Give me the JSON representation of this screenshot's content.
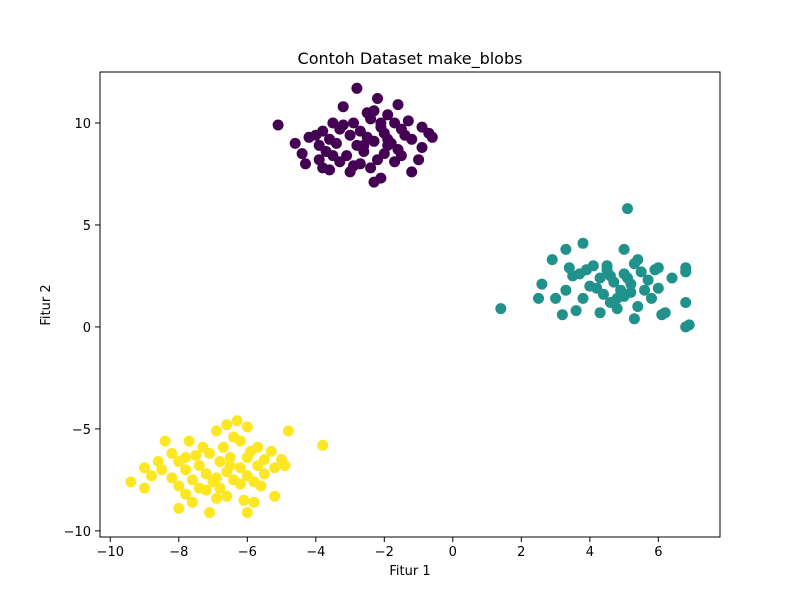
{
  "chart_data": {
    "type": "scatter",
    "title": "Contoh Dataset make_blobs",
    "xlabel": "Fitur 1",
    "ylabel": "Fitur 2",
    "xlim": [
      -10.3,
      7.8
    ],
    "ylim": [
      -10.3,
      12.5
    ],
    "xticks": [
      -10,
      -8,
      -6,
      -4,
      -2,
      0,
      2,
      4,
      6
    ],
    "yticks": [
      -10,
      -5,
      0,
      5,
      10
    ],
    "xtick_labels": [
      "−10",
      "−8",
      "−6",
      "−4",
      "−2",
      "0",
      "2",
      "4",
      "6"
    ],
    "ytick_labels": [
      "−10",
      "−5",
      "0",
      "5",
      "10"
    ],
    "grid": false,
    "series": [
      {
        "color": "#440154",
        "points": [
          [
            -5.1,
            9.9
          ],
          [
            -2.8,
            11.7
          ],
          [
            -2.2,
            11.2
          ],
          [
            -1.6,
            10.9
          ],
          [
            -3.2,
            10.8
          ],
          [
            -2.5,
            10.5
          ],
          [
            -1.9,
            10.4
          ],
          [
            -1.3,
            10.1
          ],
          [
            -3.5,
            10.0
          ],
          [
            -2.9,
            10.0
          ],
          [
            -2.4,
            10.2
          ],
          [
            -1.7,
            10.0
          ],
          [
            -0.9,
            9.8
          ],
          [
            -3.8,
            9.6
          ],
          [
            -3.3,
            9.7
          ],
          [
            -2.7,
            9.6
          ],
          [
            -2.1,
            9.8
          ],
          [
            -1.5,
            9.7
          ],
          [
            -0.6,
            9.3
          ],
          [
            -4.2,
            9.3
          ],
          [
            -3.6,
            9.2
          ],
          [
            -3.0,
            9.4
          ],
          [
            -2.5,
            9.3
          ],
          [
            -2.0,
            9.5
          ],
          [
            -1.4,
            9.4
          ],
          [
            -4.6,
            9.0
          ],
          [
            -3.9,
            8.9
          ],
          [
            -3.4,
            9.0
          ],
          [
            -2.8,
            8.9
          ],
          [
            -2.3,
            9.1
          ],
          [
            -1.8,
            9.0
          ],
          [
            -1.2,
            9.2
          ],
          [
            -4.4,
            8.5
          ],
          [
            -3.7,
            8.6
          ],
          [
            -3.1,
            8.4
          ],
          [
            -2.6,
            8.6
          ],
          [
            -2.0,
            8.5
          ],
          [
            -1.5,
            8.4
          ],
          [
            -1.0,
            8.2
          ],
          [
            -0.9,
            8.8
          ],
          [
            -3.9,
            8.2
          ],
          [
            -3.3,
            8.1
          ],
          [
            -2.7,
            8.0
          ],
          [
            -2.2,
            8.2
          ],
          [
            -1.7,
            8.1
          ],
          [
            -3.8,
            7.8
          ],
          [
            -3.0,
            7.6
          ],
          [
            -2.4,
            7.8
          ],
          [
            -2.1,
            7.3
          ],
          [
            -2.3,
            7.1
          ],
          [
            -1.2,
            7.6
          ],
          [
            -3.6,
            7.7
          ],
          [
            -2.6,
            8.9
          ],
          [
            -1.9,
            9.2
          ],
          [
            -3.2,
            9.9
          ],
          [
            -2.3,
            10.6
          ],
          [
            -4.0,
            9.4
          ],
          [
            -1.6,
            8.7
          ],
          [
            -2.9,
            7.9
          ],
          [
            -3.5,
            8.4
          ],
          [
            -2.1,
            10.0
          ],
          [
            -0.7,
            9.5
          ],
          [
            -4.3,
            8.0
          ],
          [
            -1.9,
            8.9
          ]
        ]
      },
      {
        "color": "#21918c",
        "points": [
          [
            5.1,
            5.8
          ],
          [
            1.4,
            0.9
          ],
          [
            3.3,
            3.8
          ],
          [
            3.8,
            4.1
          ],
          [
            2.9,
            3.3
          ],
          [
            3.4,
            2.9
          ],
          [
            2.6,
            2.1
          ],
          [
            2.5,
            1.4
          ],
          [
            3.0,
            1.4
          ],
          [
            3.2,
            0.6
          ],
          [
            3.6,
            0.8
          ],
          [
            3.8,
            1.4
          ],
          [
            3.7,
            2.6
          ],
          [
            4.1,
            3.0
          ],
          [
            4.3,
            2.4
          ],
          [
            4.5,
            2.8
          ],
          [
            4.0,
            2.0
          ],
          [
            4.4,
            1.6
          ],
          [
            4.6,
            1.2
          ],
          [
            4.3,
            0.7
          ],
          [
            4.8,
            0.9
          ],
          [
            5.0,
            1.5
          ],
          [
            5.2,
            2.1
          ],
          [
            5.0,
            2.6
          ],
          [
            5.3,
            3.1
          ],
          [
            5.0,
            3.8
          ],
          [
            5.5,
            2.7
          ],
          [
            5.6,
            1.8
          ],
          [
            5.8,
            1.4
          ],
          [
            5.4,
            1.0
          ],
          [
            5.3,
            0.4
          ],
          [
            6.1,
            0.6
          ],
          [
            6.2,
            0.7
          ],
          [
            6.0,
            1.9
          ],
          [
            6.0,
            2.9
          ],
          [
            6.4,
            2.4
          ],
          [
            6.8,
            2.9
          ],
          [
            6.8,
            2.7
          ],
          [
            6.8,
            1.2
          ],
          [
            6.8,
            0.0
          ],
          [
            6.9,
            0.1
          ],
          [
            3.5,
            2.5
          ],
          [
            4.7,
            2.2
          ],
          [
            5.1,
            2.4
          ],
          [
            4.9,
            1.8
          ],
          [
            4.2,
            1.9
          ],
          [
            5.7,
            2.3
          ],
          [
            3.9,
            2.8
          ],
          [
            4.6,
            2.5
          ],
          [
            5.4,
            3.3
          ],
          [
            4.8,
            1.4
          ],
          [
            3.3,
            1.8
          ],
          [
            5.9,
            2.8
          ],
          [
            5.2,
            1.7
          ],
          [
            4.5,
            3.0
          ]
        ]
      },
      {
        "color": "#fde725",
        "points": [
          [
            -3.8,
            -5.8
          ],
          [
            -4.8,
            -5.1
          ],
          [
            -6.3,
            -4.6
          ],
          [
            -6.6,
            -4.8
          ],
          [
            -6.0,
            -4.9
          ],
          [
            -6.9,
            -5.1
          ],
          [
            -6.4,
            -5.4
          ],
          [
            -8.4,
            -5.6
          ],
          [
            -7.7,
            -5.6
          ],
          [
            -7.3,
            -5.9
          ],
          [
            -6.7,
            -5.9
          ],
          [
            -6.2,
            -5.6
          ],
          [
            -5.7,
            -5.9
          ],
          [
            -5.3,
            -6.1
          ],
          [
            -8.2,
            -6.2
          ],
          [
            -7.8,
            -6.4
          ],
          [
            -7.1,
            -6.2
          ],
          [
            -6.5,
            -6.4
          ],
          [
            -6.0,
            -6.4
          ],
          [
            -5.5,
            -6.5
          ],
          [
            -5.0,
            -6.5
          ],
          [
            -8.6,
            -6.6
          ],
          [
            -8.0,
            -6.6
          ],
          [
            -7.4,
            -6.8
          ],
          [
            -6.8,
            -6.6
          ],
          [
            -6.2,
            -6.9
          ],
          [
            -5.7,
            -6.8
          ],
          [
            -5.2,
            -6.9
          ],
          [
            -4.9,
            -6.8
          ],
          [
            -9.0,
            -6.9
          ],
          [
            -8.5,
            -7.0
          ],
          [
            -7.8,
            -7.0
          ],
          [
            -7.2,
            -7.2
          ],
          [
            -6.6,
            -7.1
          ],
          [
            -6.0,
            -7.3
          ],
          [
            -5.5,
            -7.2
          ],
          [
            -8.8,
            -7.3
          ],
          [
            -8.2,
            -7.4
          ],
          [
            -7.6,
            -7.5
          ],
          [
            -7.0,
            -7.6
          ],
          [
            -6.4,
            -7.5
          ],
          [
            -5.8,
            -7.6
          ],
          [
            -9.4,
            -7.6
          ],
          [
            -8.0,
            -7.8
          ],
          [
            -7.4,
            -7.9
          ],
          [
            -6.8,
            -7.9
          ],
          [
            -6.2,
            -7.7
          ],
          [
            -5.6,
            -7.8
          ],
          [
            -9.0,
            -7.9
          ],
          [
            -7.8,
            -8.2
          ],
          [
            -7.2,
            -8.0
          ],
          [
            -6.6,
            -8.3
          ],
          [
            -6.1,
            -8.5
          ],
          [
            -5.2,
            -8.3
          ],
          [
            -7.6,
            -8.6
          ],
          [
            -6.9,
            -8.4
          ],
          [
            -5.8,
            -8.6
          ],
          [
            -8.0,
            -8.9
          ],
          [
            -7.1,
            -9.1
          ],
          [
            -6.0,
            -9.1
          ],
          [
            -6.5,
            -6.8
          ],
          [
            -7.5,
            -6.3
          ],
          [
            -6.9,
            -7.4
          ],
          [
            -5.9,
            -6.1
          ]
        ]
      }
    ]
  }
}
